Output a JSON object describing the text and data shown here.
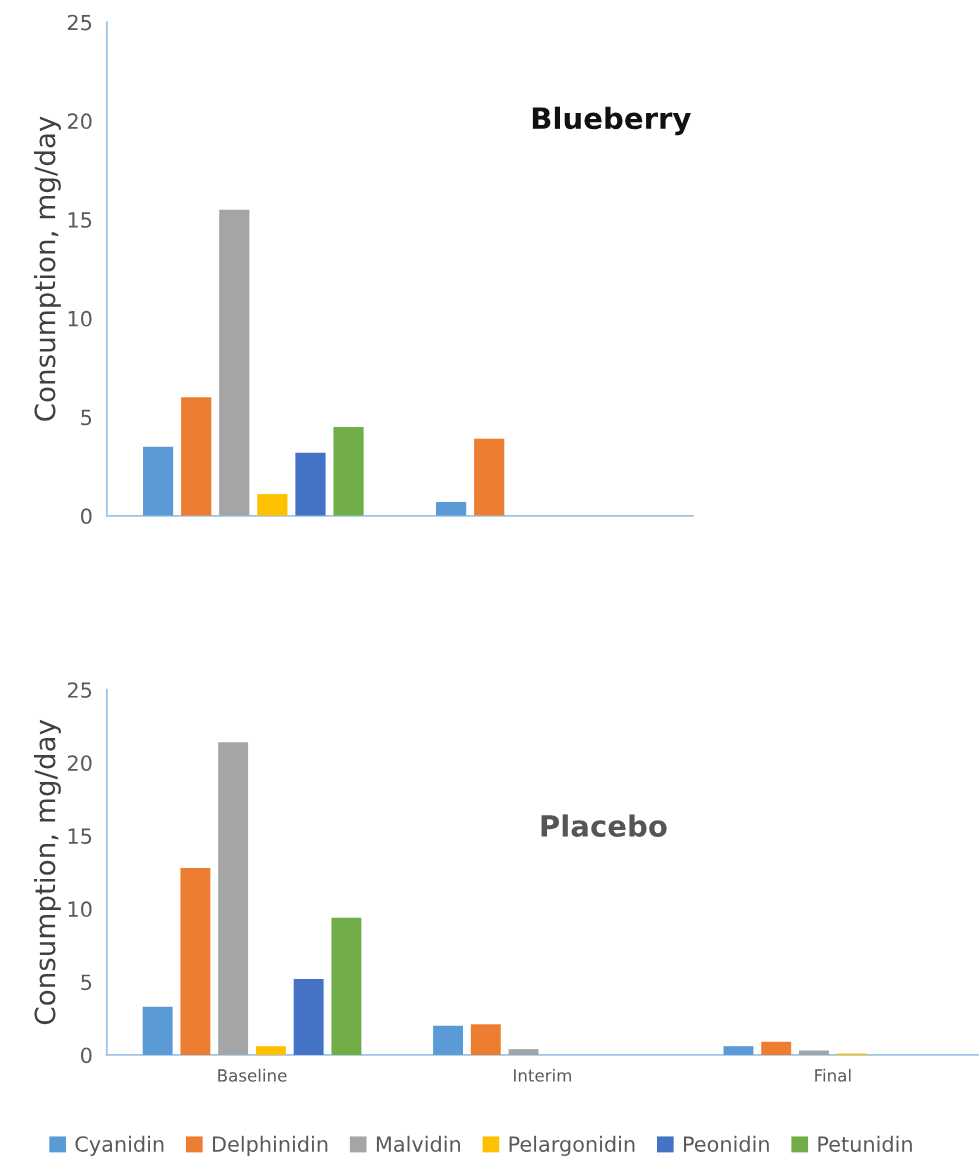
{
  "chart_data": [
    {
      "type": "bar",
      "title": "Blueberry",
      "ylabel": "Consumption, mg/day",
      "categories": [
        null,
        null
      ],
      "ylim": [
        0,
        25
      ],
      "yticks": [
        0,
        5,
        10,
        15,
        20,
        25
      ],
      "tick_labels": "y",
      "grid": false,
      "legend": false,
      "series": [
        {
          "color": "#5b9bd5",
          "values": [
            3.5,
            0.7
          ]
        },
        {
          "color": "#ed7d31",
          "values": [
            6.0,
            3.9
          ]
        },
        {
          "color": "#a5a5a5",
          "values": [
            15.5,
            0
          ]
        },
        {
          "color": "#ffc000",
          "values": [
            1.1,
            0
          ]
        },
        {
          "color": "#4472c4",
          "values": [
            3.2,
            0
          ]
        },
        {
          "color": "#70ad47",
          "values": [
            4.5,
            0
          ]
        }
      ]
    },
    {
      "type": "bar",
      "title": "Placebo",
      "ylabel": "Consumption, mg/day",
      "categories": [
        "Baseline",
        "Interim",
        "Final"
      ],
      "ylim": [
        0,
        25
      ],
      "yticks": [
        0,
        5,
        10,
        15,
        20,
        25
      ],
      "grid": false,
      "legend": "bottom",
      "series": [
        {
          "name": "Cyanidin",
          "color": "#5b9bd5",
          "values": [
            3.3,
            2.0,
            0.6
          ]
        },
        {
          "name": "Delphinidin",
          "color": "#ed7d31",
          "values": [
            12.8,
            2.1,
            0.9
          ]
        },
        {
          "name": "Malvidin",
          "color": "#a5a5a5",
          "values": [
            21.4,
            0.4,
            0.3
          ]
        },
        {
          "name": "Pelargonidin",
          "color": "#ffc000",
          "values": [
            0.6,
            0,
            0.1
          ]
        },
        {
          "name": "Peonidin",
          "color": "#4472c4",
          "values": [
            5.2,
            0,
            0
          ]
        },
        {
          "name": "Petunidin",
          "color": "#70ad47",
          "values": [
            9.4,
            0,
            0
          ]
        }
      ]
    }
  ]
}
